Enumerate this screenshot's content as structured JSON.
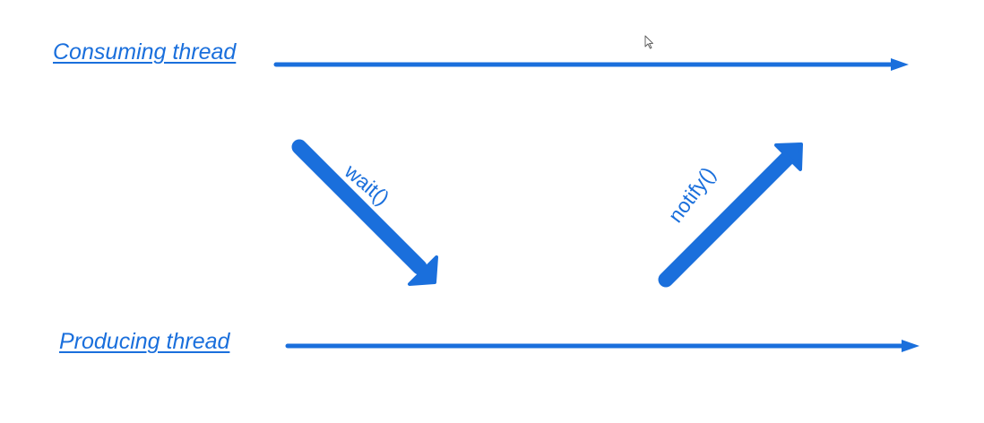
{
  "threads": {
    "consuming_label": "Consuming thread",
    "producing_label": "Producing thread"
  },
  "calls": {
    "wait_label": "wait()",
    "notify_label": "notify()"
  },
  "colors": {
    "accent": "#1a6fdc"
  }
}
